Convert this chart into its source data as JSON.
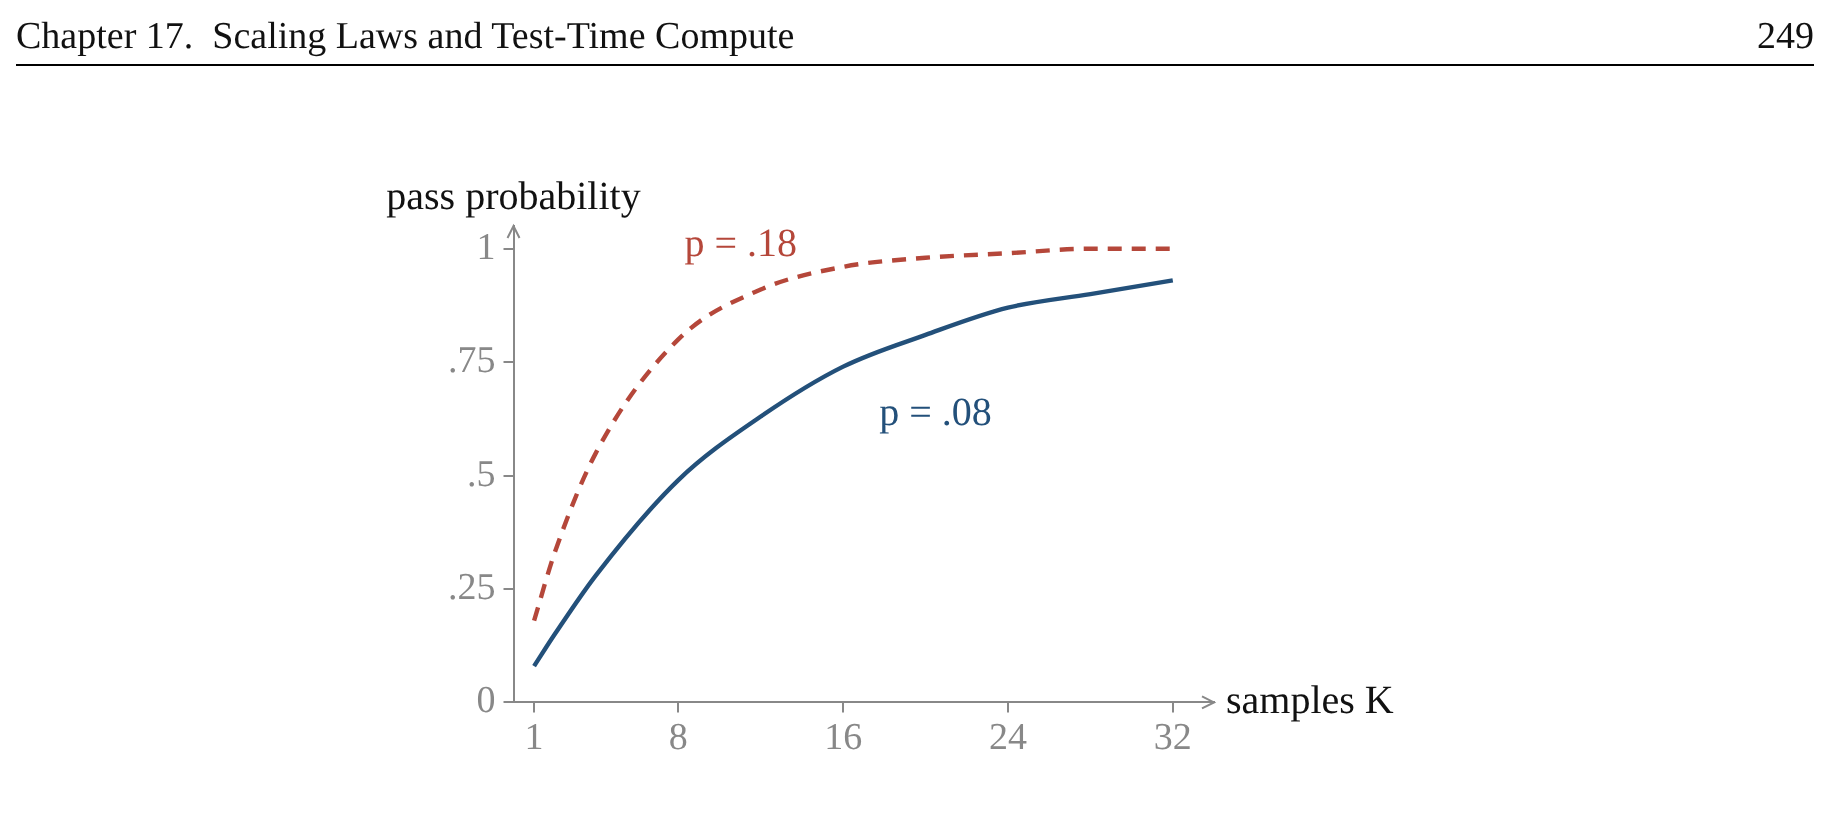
{
  "chart_data": {
    "type": "line",
    "annotations": [
      "Chapter 17.  Scaling Laws and Test-Time Compute",
      "249"
    ],
    "xlabel": "samples K",
    "ylabel": "pass probability",
    "x": [
      1,
      2,
      4,
      8,
      12,
      16,
      20,
      24,
      28,
      32
    ],
    "series": [
      {
        "name": "p = .18",
        "color": "#b5473a",
        "line_style": "dashed",
        "values": [
          0.18,
          0.33,
          0.55,
          0.8,
          0.91,
          0.96,
          0.98,
          0.99,
          1.0,
          1.0
        ]
      },
      {
        "name": "p = .08",
        "color": "#23507a",
        "line_style": "solid",
        "values": [
          0.08,
          0.15,
          0.28,
          0.49,
          0.63,
          0.74,
          0.81,
          0.87,
          0.9,
          0.93
        ]
      }
    ],
    "xlim": [
      0,
      34
    ],
    "ylim": [
      0,
      1.05
    ],
    "xticks": [
      1,
      8,
      16,
      24,
      32
    ],
    "yticks": [
      {
        "value": 0,
        "label": "0"
      },
      {
        "value": 0.25,
        "label": ".25"
      },
      {
        "value": 0.5,
        "label": ".5"
      },
      {
        "value": 0.75,
        "label": ".75"
      },
      {
        "value": 1,
        "label": "1"
      }
    ],
    "grid": false,
    "legend": false,
    "marker": "none"
  }
}
